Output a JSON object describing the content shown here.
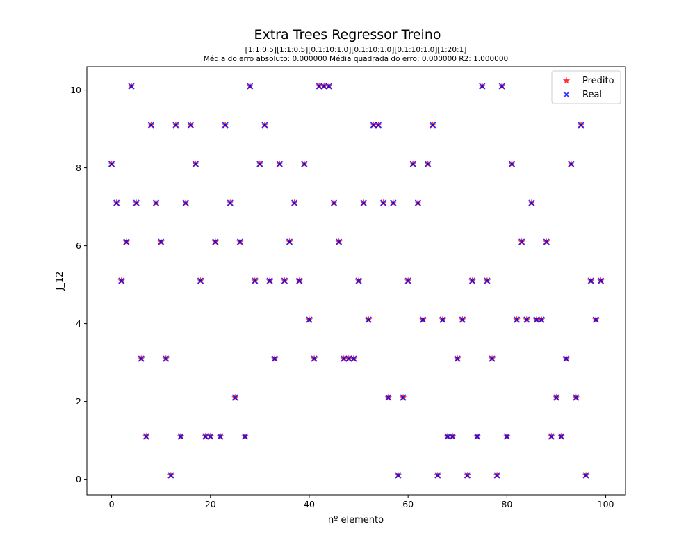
{
  "chart_data": {
    "type": "scatter",
    "title": "Extra Trees Regressor Treino",
    "subtitle_line1": "[1:1:0.5][1:1:0.5][0.1:10:1.0][0.1:10:1.0][0.1:10:1.0][1:20:1]",
    "subtitle_line2": "Média do erro absoluto: 0.000000 Média quadrada do erro: 0.000000 R2: 1.000000",
    "xlabel": "nº elemento",
    "ylabel": "J_12",
    "xlim": [
      -5,
      104
    ],
    "ylim": [
      -0.4,
      10.6
    ],
    "xticks": [
      0,
      20,
      40,
      60,
      80,
      100
    ],
    "yticks": [
      0,
      2,
      4,
      6,
      8,
      10
    ],
    "legend_position": "top-right",
    "x": [
      0,
      1,
      2,
      3,
      4,
      5,
      6,
      7,
      8,
      9,
      10,
      11,
      12,
      13,
      14,
      15,
      16,
      17,
      18,
      19,
      20,
      21,
      22,
      23,
      24,
      25,
      26,
      27,
      28,
      29,
      30,
      31,
      32,
      33,
      34,
      35,
      36,
      37,
      38,
      39,
      40,
      41,
      42,
      43,
      44,
      45,
      46,
      47,
      48,
      49,
      50,
      51,
      52,
      53,
      54,
      55,
      56,
      57,
      58,
      59,
      60,
      61,
      62,
      63,
      64,
      65,
      66,
      67,
      68,
      69,
      70,
      71,
      72,
      73,
      74,
      75,
      76,
      77,
      78,
      79,
      80,
      81,
      82,
      83,
      84,
      85,
      86,
      87,
      88,
      89,
      90,
      91,
      92,
      93,
      94,
      95,
      96,
      97,
      98,
      99
    ],
    "series": [
      {
        "name": "Predito",
        "marker": "star",
        "color": "#ff0000",
        "values": [
          8.1,
          7.1,
          5.1,
          6.1,
          10.1,
          7.1,
          3.1,
          1.1,
          9.1,
          7.1,
          6.1,
          3.1,
          0.1,
          9.1,
          1.1,
          7.1,
          9.1,
          8.1,
          5.1,
          1.1,
          1.1,
          6.1,
          1.1,
          9.1,
          7.1,
          2.1,
          6.1,
          1.1,
          10.1,
          5.1,
          8.1,
          9.1,
          5.1,
          3.1,
          8.1,
          5.1,
          6.1,
          7.1,
          5.1,
          8.1,
          4.1,
          3.1,
          10.1,
          10.1,
          10.1,
          7.1,
          6.1,
          3.1,
          3.1,
          3.1,
          5.1,
          7.1,
          4.1,
          9.1,
          9.1,
          7.1,
          2.1,
          7.1,
          0.1,
          2.1,
          5.1,
          8.1,
          7.1,
          4.1,
          8.1,
          9.1,
          0.1,
          4.1,
          1.1,
          1.1,
          3.1,
          4.1,
          0.1,
          5.1,
          1.1,
          10.1,
          5.1,
          3.1,
          0.1,
          10.1,
          1.1,
          8.1,
          4.1,
          6.1,
          4.1,
          7.1,
          4.1,
          4.1,
          6.1,
          1.1,
          2.1,
          1.1,
          3.1,
          8.1,
          2.1,
          9.1,
          0.1,
          5.1,
          4.1,
          5.1
        ]
      },
      {
        "name": "Real",
        "marker": "x",
        "color": "#0000ff",
        "values": [
          8.1,
          7.1,
          5.1,
          6.1,
          10.1,
          7.1,
          3.1,
          1.1,
          9.1,
          7.1,
          6.1,
          3.1,
          0.1,
          9.1,
          1.1,
          7.1,
          9.1,
          8.1,
          5.1,
          1.1,
          1.1,
          6.1,
          1.1,
          9.1,
          7.1,
          2.1,
          6.1,
          1.1,
          10.1,
          5.1,
          8.1,
          9.1,
          5.1,
          3.1,
          8.1,
          5.1,
          6.1,
          7.1,
          5.1,
          8.1,
          4.1,
          3.1,
          10.1,
          10.1,
          10.1,
          7.1,
          6.1,
          3.1,
          3.1,
          3.1,
          5.1,
          7.1,
          4.1,
          9.1,
          9.1,
          7.1,
          2.1,
          7.1,
          0.1,
          2.1,
          5.1,
          8.1,
          7.1,
          4.1,
          8.1,
          9.1,
          0.1,
          4.1,
          1.1,
          1.1,
          3.1,
          4.1,
          0.1,
          5.1,
          1.1,
          10.1,
          5.1,
          3.1,
          0.1,
          10.1,
          1.1,
          8.1,
          4.1,
          6.1,
          4.1,
          7.1,
          4.1,
          4.1,
          6.1,
          1.1,
          2.1,
          1.1,
          3.1,
          8.1,
          2.1,
          9.1,
          0.1,
          5.1,
          4.1,
          5.1
        ]
      }
    ]
  }
}
